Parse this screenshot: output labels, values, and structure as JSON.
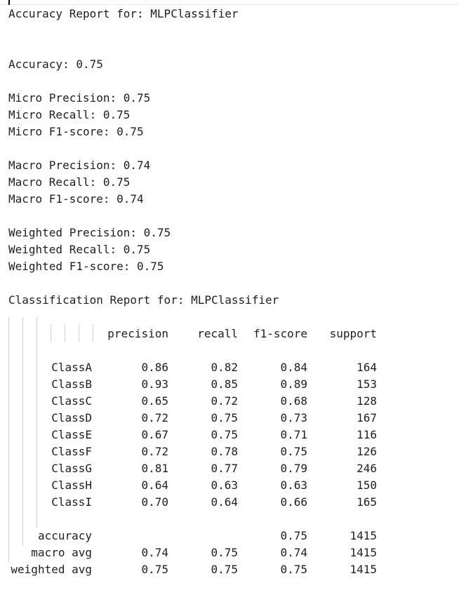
{
  "report": {
    "accuracy_title": "Accuracy Report for: MLPClassifier",
    "accuracy": "Accuracy: 0.75",
    "micro_precision": "Micro Precision: 0.75",
    "micro_recall": "Micro Recall: 0.75",
    "micro_f1": "Micro F1-score: 0.75",
    "macro_precision": "Macro Precision: 0.74",
    "macro_recall": "Macro Recall: 0.75",
    "macro_f1": "Macro F1-score: 0.74",
    "weighted_precision": "Weighted Precision: 0.75",
    "weighted_recall": "Weighted Recall: 0.75",
    "weighted_f1": "Weighted F1-score: 0.75",
    "classification_title": "Classification Report for: MLPClassifier"
  },
  "table": {
    "headers": [
      "precision",
      "recall",
      "f1-score",
      "support"
    ],
    "rows": [
      {
        "label": "ClassA",
        "precision": "0.86",
        "recall": "0.82",
        "f1": "0.84",
        "support": "164"
      },
      {
        "label": "ClassB",
        "precision": "0.93",
        "recall": "0.85",
        "f1": "0.89",
        "support": "153"
      },
      {
        "label": "ClassC",
        "precision": "0.65",
        "recall": "0.72",
        "f1": "0.68",
        "support": "128"
      },
      {
        "label": "ClassD",
        "precision": "0.72",
        "recall": "0.75",
        "f1": "0.73",
        "support": "167"
      },
      {
        "label": "ClassE",
        "precision": "0.67",
        "recall": "0.75",
        "f1": "0.71",
        "support": "116"
      },
      {
        "label": "ClassF",
        "precision": "0.72",
        "recall": "0.78",
        "f1": "0.75",
        "support": "126"
      },
      {
        "label": "ClassG",
        "precision": "0.81",
        "recall": "0.77",
        "f1": "0.79",
        "support": "246"
      },
      {
        "label": "ClassH",
        "precision": "0.64",
        "recall": "0.63",
        "f1": "0.63",
        "support": "150"
      },
      {
        "label": "ClassI",
        "precision": "0.70",
        "recall": "0.64",
        "f1": "0.66",
        "support": "165"
      }
    ],
    "summary": [
      {
        "label": "accuracy",
        "precision": "",
        "recall": "",
        "f1": "0.75",
        "support": "1415"
      },
      {
        "label": "macro avg",
        "precision": "0.74",
        "recall": "0.75",
        "f1": "0.74",
        "support": "1415"
      },
      {
        "label": "weighted avg",
        "precision": "0.75",
        "recall": "0.75",
        "f1": "0.75",
        "support": "1415"
      }
    ]
  }
}
